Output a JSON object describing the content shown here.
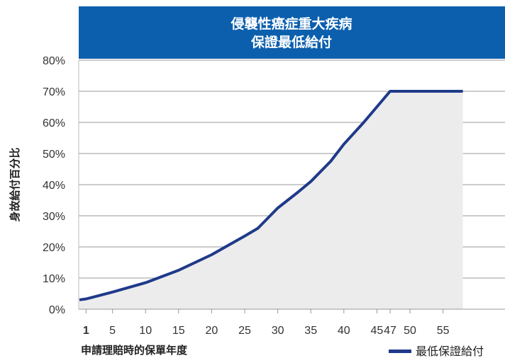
{
  "chart_data": {
    "type": "area",
    "title_lines": [
      "侵襲性癌症重大疾病",
      "保證最低給付"
    ],
    "xlabel": "申請理賠時的保單年度",
    "ylabel": "身故給付百分比",
    "x_ticks": [
      1,
      5,
      10,
      15,
      20,
      25,
      30,
      35,
      40,
      45,
      47,
      50,
      55
    ],
    "x_tick_labels": [
      "1",
      "5",
      "10",
      "15",
      "20",
      "25",
      "30",
      "35",
      "40",
      "45",
      "47",
      "50",
      "55"
    ],
    "y_ticks": [
      0,
      10,
      20,
      30,
      40,
      50,
      60,
      70,
      80
    ],
    "y_tick_labels": [
      "0%",
      "10%",
      "20%",
      "30%",
      "40%",
      "50%",
      "60%",
      "70%",
      "80%"
    ],
    "xlim": [
      0,
      58
    ],
    "ylim": [
      0,
      80
    ],
    "grid": true,
    "legend_position": "bottom-right",
    "series": [
      {
        "name": "最低保證給付",
        "color": "#1f3a8a",
        "x": [
          0,
          1,
          5,
          10,
          15,
          20,
          25,
          27,
          30,
          33,
          35,
          38,
          40,
          43,
          45,
          47,
          50,
          55,
          58
        ],
        "y": [
          3,
          3.3,
          5.5,
          8.5,
          12.5,
          17.5,
          23.5,
          26,
          32.5,
          37.5,
          41,
          47.5,
          53,
          60,
          65,
          70,
          70,
          70,
          70
        ]
      }
    ],
    "colors": {
      "title_bar": "#0b5fad",
      "line": "#1f3a8a",
      "area_fill": "#ececec",
      "grid": "#bbbbbb"
    }
  }
}
